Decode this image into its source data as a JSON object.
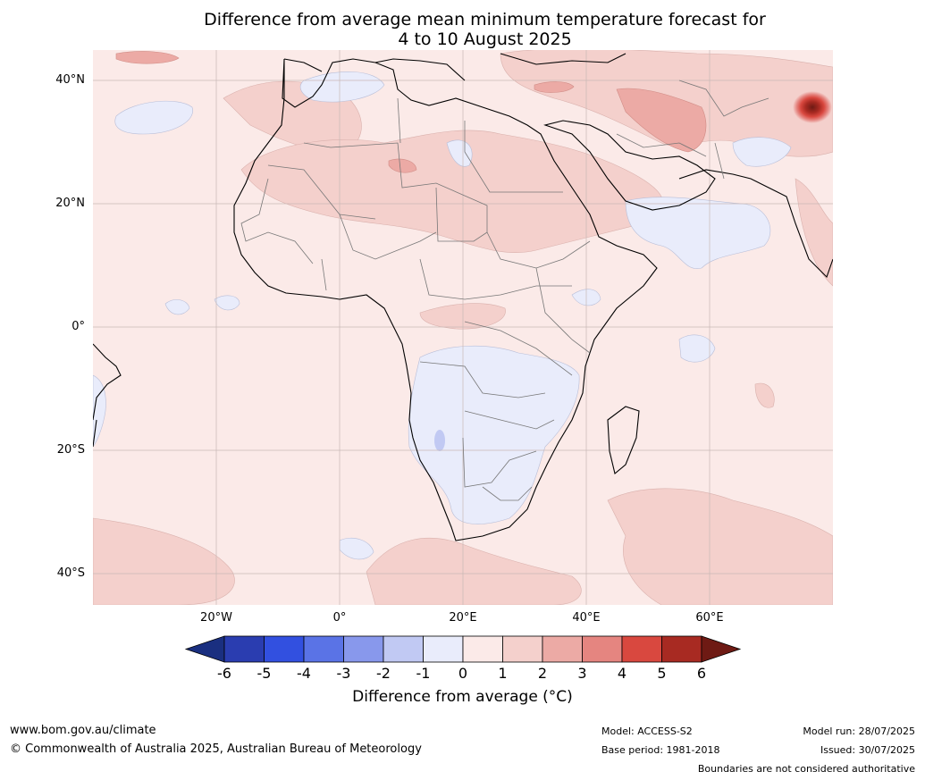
{
  "title": {
    "line1": "Difference from average mean minimum temperature forecast for",
    "line2": "4 to 10 August 2025"
  },
  "map": {
    "lat_labels": [
      "40°N",
      "20°N",
      "0°",
      "20°S",
      "40°S"
    ],
    "lon_labels": [
      "20°W",
      "0°",
      "20°E",
      "40°E",
      "60°E"
    ],
    "background_color": "#fbeae8"
  },
  "colorbar": {
    "ticks": [
      "-6",
      "-5",
      "-4",
      "-3",
      "-2",
      "-1",
      "0",
      "1",
      "2",
      "3",
      "4",
      "5",
      "6"
    ],
    "colors": [
      "#1a2f80",
      "#2a3db0",
      "#3250e0",
      "#5a73e6",
      "#8898ec",
      "#c1c9f3",
      "#e9ecfb",
      "#fbeae8",
      "#f4d0cc",
      "#ecaaa5",
      "#e58580",
      "#d9483f",
      "#a82a22",
      "#6e1a14"
    ],
    "label": "Difference from average (°C)"
  },
  "footer": {
    "website": "www.bom.gov.au/climate",
    "copyright": "© Commonwealth of Australia 2025, Australian Bureau of Meteorology",
    "model": "Model: ACCESS-S2",
    "base_period": "Base period: 1981-2018",
    "model_run": "Model run: 28/07/2025",
    "issued": "Issued: 30/07/2025",
    "disclaimer": "Boundaries are not considered authoritative"
  }
}
